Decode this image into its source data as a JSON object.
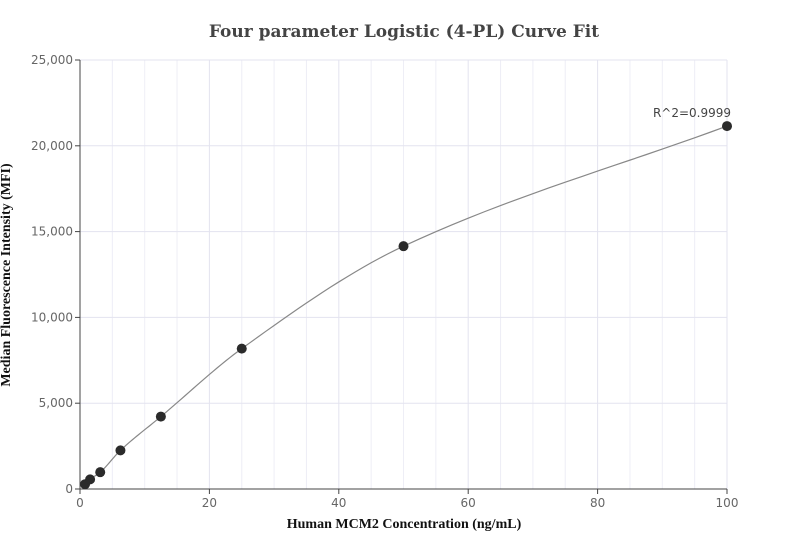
{
  "chart_data": {
    "type": "scatter",
    "title": "Four parameter Logistic (4-PL) Curve Fit",
    "xlabel": "Human MCM2 Concentration (ng/mL)",
    "ylabel": "Median Fluorescence Intensity (MFI)",
    "xlim": [
      0,
      100
    ],
    "ylim": [
      0,
      25000
    ],
    "x_ticks": [
      0,
      20,
      40,
      60,
      80,
      100
    ],
    "y_ticks": [
      0,
      5000,
      10000,
      15000,
      20000,
      25000
    ],
    "x_tick_labels": [
      "0",
      "20",
      "40",
      "60",
      "80",
      "100"
    ],
    "y_tick_labels": [
      "0",
      "5,000",
      "10,000",
      "15,000",
      "20,000",
      "25,000"
    ],
    "grid": true,
    "series": [
      {
        "points": [
          {
            "x": 0.78,
            "y": 280
          },
          {
            "x": 1.56,
            "y": 560
          },
          {
            "x": 3.125,
            "y": 980
          },
          {
            "x": 6.25,
            "y": 2250
          },
          {
            "x": 12.5,
            "y": 4220
          },
          {
            "x": 25,
            "y": 8180
          },
          {
            "x": 50,
            "y": 14150
          },
          {
            "x": 100,
            "y": 21150
          }
        ],
        "color": "#2b2b2b"
      }
    ],
    "fit_curve": {
      "model": "4-PL",
      "color": "#888888"
    },
    "annotations": [
      {
        "text": "R^2=0.9999",
        "x": 100,
        "y": 21150
      }
    ]
  }
}
